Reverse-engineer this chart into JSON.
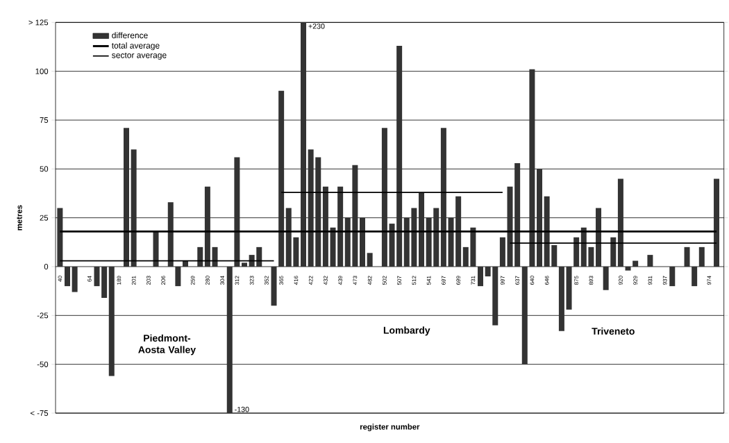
{
  "chart_data": {
    "type": "bar",
    "xlabel": "register number",
    "ylabel": "metres",
    "categories": [
      "40",
      null,
      null,
      null,
      "64",
      null,
      null,
      null,
      "189",
      null,
      "201",
      null,
      "203",
      null,
      "206",
      null,
      null,
      null,
      "259",
      null,
      "280",
      null,
      "304",
      null,
      "312",
      null,
      "323",
      null,
      "352",
      null,
      "365",
      null,
      "416",
      null,
      "422",
      null,
      "432",
      null,
      "439",
      null,
      "473",
      null,
      "482",
      null,
      "502",
      null,
      "507",
      null,
      "512",
      null,
      "541",
      null,
      "697",
      null,
      "699",
      null,
      "731",
      null,
      null,
      null,
      "997",
      null,
      "637",
      null,
      "640",
      null,
      "646",
      null,
      null,
      null,
      "875",
      null,
      "893",
      null,
      null,
      null,
      "920",
      null,
      "929",
      null,
      "931",
      null,
      "937",
      null,
      null,
      null,
      null,
      null,
      "974",
      null
    ],
    "series": [
      {
        "name": "difference",
        "color": "#333333",
        "values": [
          30,
          -10,
          -13,
          null,
          null,
          -10,
          -16,
          -56,
          null,
          71,
          60,
          null,
          null,
          18,
          null,
          33,
          -10,
          3,
          null,
          10,
          41,
          10,
          null,
          -75,
          56,
          2,
          6,
          10,
          null,
          -20,
          90,
          30,
          15,
          125,
          60,
          56,
          41,
          20,
          41,
          25,
          52,
          25,
          7,
          null,
          71,
          22,
          113,
          25,
          30,
          38,
          25,
          30,
          71,
          25,
          36,
          10,
          20,
          -10,
          -5,
          -30,
          15,
          41,
          53,
          -50,
          101,
          50,
          36,
          11,
          -33,
          -22,
          15,
          20,
          10,
          30,
          -12,
          15,
          45,
          -2,
          3,
          null,
          6,
          null,
          null,
          -10,
          null,
          10,
          -10,
          10,
          null,
          45
        ]
      },
      {
        "name": "total average",
        "type": "line",
        "color": "#000000",
        "values": [
          18,
          18,
          18,
          18,
          18,
          18,
          18,
          18,
          18,
          18,
          18,
          18,
          18,
          18,
          18,
          18,
          18,
          18,
          18,
          18,
          18,
          18,
          18,
          18,
          18,
          18,
          18,
          18,
          18,
          18,
          18,
          18,
          18,
          18,
          18,
          18,
          18,
          18,
          18,
          18,
          18,
          18,
          18,
          18,
          18,
          18,
          18,
          18,
          18,
          18,
          18,
          18,
          18,
          18,
          18,
          18,
          18,
          18,
          18,
          18,
          18,
          18,
          18,
          18,
          18,
          18,
          18,
          18,
          18,
          18,
          18,
          18,
          18,
          18,
          18,
          18,
          18,
          18,
          18,
          18,
          18,
          18,
          18,
          18,
          18,
          18,
          18,
          18,
          18,
          18
        ]
      },
      {
        "name": "sector average",
        "type": "line",
        "color": "#000000",
        "values": [
          3,
          3,
          3,
          3,
          3,
          3,
          3,
          3,
          3,
          3,
          3,
          3,
          3,
          3,
          3,
          3,
          3,
          3,
          3,
          3,
          3,
          3,
          3,
          3,
          3,
          3,
          3,
          3,
          3,
          3,
          null,
          null,
          null,
          null,
          null,
          null,
          null,
          null,
          null,
          null,
          null,
          null,
          null,
          null,
          null,
          null,
          null,
          null,
          null,
          null,
          null,
          null,
          null,
          null,
          null,
          null,
          null,
          null,
          null,
          null,
          null,
          null,
          null,
          null,
          null,
          null,
          null,
          null,
          null,
          null,
          null,
          null,
          null,
          null,
          null,
          null,
          null,
          null,
          null,
          null,
          null,
          null,
          null,
          null,
          null,
          null,
          null,
          null,
          null,
          null
        ]
      },
      {
        "type": "line",
        "color": "#000000",
        "values": [
          null,
          null,
          null,
          null,
          null,
          null,
          null,
          null,
          null,
          null,
          null,
          null,
          null,
          null,
          null,
          null,
          null,
          null,
          null,
          null,
          null,
          null,
          null,
          null,
          null,
          null,
          null,
          null,
          null,
          null,
          38,
          38,
          38,
          38,
          38,
          38,
          38,
          38,
          38,
          38,
          38,
          38,
          38,
          38,
          38,
          38,
          38,
          38,
          38,
          38,
          38,
          38,
          38,
          38,
          38,
          38,
          38,
          38,
          38,
          38,
          38,
          null,
          null,
          null,
          null,
          null,
          null,
          null,
          null,
          null,
          null,
          null,
          null,
          null,
          null,
          null,
          null,
          null,
          null,
          null,
          null,
          null,
          null,
          null,
          null,
          null,
          null,
          null,
          null,
          null
        ]
      },
      {
        "type": "line",
        "color": "#000000",
        "values": [
          null,
          null,
          null,
          null,
          null,
          null,
          null,
          null,
          null,
          null,
          null,
          null,
          null,
          null,
          null,
          null,
          null,
          null,
          null,
          null,
          null,
          null,
          null,
          null,
          null,
          null,
          null,
          null,
          null,
          null,
          null,
          null,
          null,
          null,
          null,
          null,
          null,
          null,
          null,
          null,
          null,
          null,
          null,
          null,
          null,
          null,
          null,
          null,
          null,
          null,
          null,
          null,
          null,
          null,
          null,
          null,
          null,
          null,
          null,
          null,
          null,
          12,
          12,
          12,
          12,
          12,
          12,
          12,
          12,
          12,
          12,
          12,
          12,
          12,
          12,
          12,
          12,
          12,
          12,
          12,
          12,
          12,
          12,
          12,
          12,
          12,
          12,
          12,
          12,
          12
        ]
      }
    ],
    "ylim": [
      -75,
      125
    ],
    "yticks": [
      {
        "value": -75,
        "label": "< -75"
      },
      -50,
      -25,
      0,
      25,
      50,
      75,
      100,
      {
        "value": 125,
        "label": "> 125"
      }
    ],
    "grid": "y",
    "legend": "top left",
    "annotations": [
      "+230",
      "-130",
      "Piedmont-Aosta Valley",
      "Lombardy",
      "Triveneto"
    ]
  }
}
